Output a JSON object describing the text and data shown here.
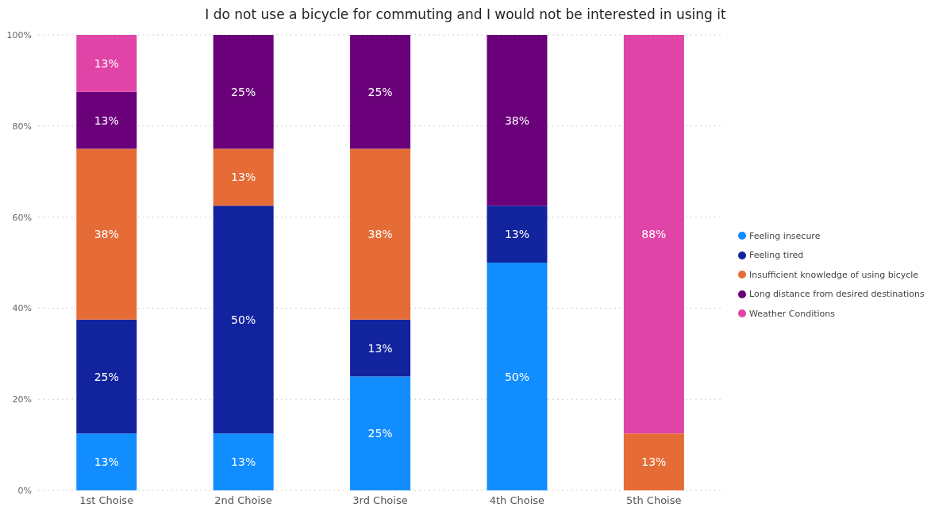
{
  "chart_data": {
    "type": "bar",
    "title": "I do not use a bicycle for commuting and I would not be interested in using it",
    "categories": [
      "1st Choise",
      "2nd Choise",
      "3rd Choise",
      "4th Choise",
      "5th Choise"
    ],
    "stacked": true,
    "series": [
      {
        "name": "Feeling insecure",
        "color": "#118dff",
        "values": [
          12.5,
          12.5,
          25,
          50,
          null
        ],
        "value_labels": [
          "13%",
          "13%",
          "25%",
          "50%",
          null
        ]
      },
      {
        "name": "Feeling tired",
        "color": "#12239e",
        "values": [
          25,
          50,
          12.5,
          12.5,
          null
        ],
        "value_labels": [
          "25%",
          "50%",
          "13%",
          "13%",
          null
        ]
      },
      {
        "name": "Insufficient knowledge of using bicycle",
        "color": "#e66c37",
        "values": [
          37.5,
          12.5,
          37.5,
          null,
          12.5
        ],
        "value_labels": [
          "38%",
          "13%",
          "38%",
          null,
          "13%"
        ]
      },
      {
        "name": "Long distance from desired destinations",
        "color": "#6b007b",
        "values": [
          12.5,
          25,
          25,
          37.5,
          null
        ],
        "value_labels": [
          "13%",
          "25%",
          "25%",
          "38%",
          null
        ]
      },
      {
        "name": "Weather Conditions",
        "color": "#e044a7",
        "values": [
          12.5,
          null,
          null,
          null,
          87.5
        ],
        "value_labels": [
          "13%",
          null,
          null,
          null,
          "88%"
        ]
      }
    ],
    "ylim": [
      0,
      100
    ],
    "yticks": [
      {
        "value": 0,
        "label": "0%"
      },
      {
        "value": 20,
        "label": "20%"
      },
      {
        "value": 40,
        "label": "40%"
      },
      {
        "value": 60,
        "label": "60%"
      },
      {
        "value": 80,
        "label": "80%"
      },
      {
        "value": 100,
        "label": "100%"
      }
    ],
    "grid": "y",
    "legend": "right"
  }
}
